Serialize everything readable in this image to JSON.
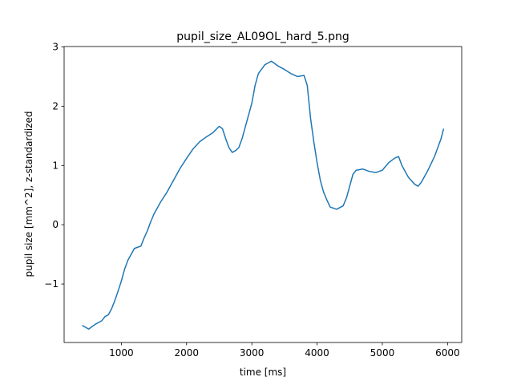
{
  "chart_data": {
    "type": "line",
    "title": "pupil_size_AL09OL_hard_5.png",
    "x_label": "time [ms]",
    "y_label": "pupil size [mm^2], z-standardized",
    "x": [
      400,
      450,
      500,
      550,
      600,
      650,
      700,
      750,
      800,
      850,
      900,
      950,
      1000,
      1050,
      1100,
      1150,
      1200,
      1250,
      1300,
      1350,
      1400,
      1450,
      1500,
      1600,
      1700,
      1800,
      1900,
      2000,
      2100,
      2200,
      2300,
      2400,
      2500,
      2550,
      2600,
      2650,
      2700,
      2750,
      2800,
      2850,
      2900,
      3000,
      3050,
      3100,
      3200,
      3300,
      3400,
      3500,
      3600,
      3700,
      3800,
      3850,
      3900,
      3950,
      4000,
      4050,
      4100,
      4150,
      4200,
      4300,
      4400,
      4450,
      4500,
      4550,
      4600,
      4700,
      4800,
      4900,
      5000,
      5100,
      5200,
      5250,
      5300,
      5400,
      5500,
      5550,
      5600,
      5700,
      5800,
      5900,
      5940
    ],
    "series": [
      {
        "color": "#1f77b4",
        "values": [
          -1.7,
          -1.73,
          -1.76,
          -1.72,
          -1.68,
          -1.65,
          -1.62,
          -1.55,
          -1.52,
          -1.42,
          -1.28,
          -1.12,
          -0.95,
          -0.75,
          -0.6,
          -0.5,
          -0.4,
          -0.38,
          -0.36,
          -0.22,
          -0.1,
          0.05,
          0.18,
          0.38,
          0.55,
          0.75,
          0.95,
          1.12,
          1.28,
          1.4,
          1.48,
          1.55,
          1.66,
          1.62,
          1.45,
          1.3,
          1.22,
          1.25,
          1.3,
          1.45,
          1.65,
          2.05,
          2.35,
          2.55,
          2.7,
          2.76,
          2.68,
          2.62,
          2.55,
          2.5,
          2.52,
          2.35,
          1.8,
          1.4,
          1.05,
          0.75,
          0.55,
          0.42,
          0.3,
          0.26,
          0.32,
          0.45,
          0.65,
          0.85,
          0.92,
          0.94,
          0.9,
          0.88,
          0.92,
          1.05,
          1.13,
          1.15,
          1.0,
          0.8,
          0.68,
          0.65,
          0.72,
          0.92,
          1.15,
          1.45,
          1.62
        ]
      }
    ],
    "xlim": [
      123,
      6217
    ],
    "xticks": [
      1000,
      2000,
      3000,
      4000,
      5000,
      6000
    ],
    "ylim": [
      -1.987,
      3.007
    ],
    "yticks": [
      {
        "value": -1,
        "label": "−1"
      },
      0,
      1,
      2,
      3
    ]
  }
}
